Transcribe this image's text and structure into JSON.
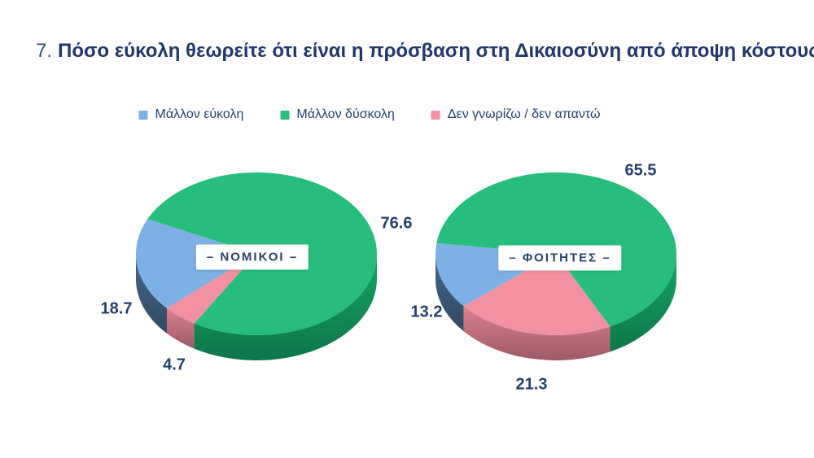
{
  "title": {
    "number": "7.",
    "text": "Πόσο εύκολη θεωρείτε ότι είναι η πρόσβαση στη Δικαιοσύνη από άποψη κόστους;",
    "color": "#20386B"
  },
  "legend": [
    {
      "label": "Μάλλον εύκολη",
      "color": "#7DB0E4"
    },
    {
      "label": "Μάλλον δύσκολη",
      "color": "#27BD7C"
    },
    {
      "label": "Δεν γνωρίζω / δεν απαντώ",
      "color": "#F2919F"
    }
  ],
  "chart_data": [
    {
      "type": "pie",
      "style": "3d",
      "title": "– ΝΟΜΙΚΟΙ –",
      "labels": [
        "Μάλλον εύκολη",
        "Μάλλον δύσκολη",
        "Δεν γνωρίζω / δεν απαντώ"
      ],
      "values": [
        18.7,
        76.6,
        4.7
      ],
      "colors": [
        "#7DB0E4",
        "#27BD7C",
        "#F2919F"
      ],
      "side_colors": [
        "#3E5C7C",
        "#12935C",
        "#C4717F"
      ],
      "start_angle": 138
    },
    {
      "type": "pie",
      "style": "3d",
      "title": "– ΦΟΙΤΗΤΕΣ –",
      "labels": [
        "Μάλλον εύκολη",
        "Μάλλον δύσκολη",
        "Δεν γνωρίζω / δεν απαντώ"
      ],
      "values": [
        13.2,
        65.5,
        21.3
      ],
      "colors": [
        "#7DB0E4",
        "#27BD7C",
        "#F2919F"
      ],
      "side_colors": [
        "#3E5C7C",
        "#12935C",
        "#C4717F"
      ],
      "start_angle": 140
    }
  ],
  "text_color": "#24406E"
}
